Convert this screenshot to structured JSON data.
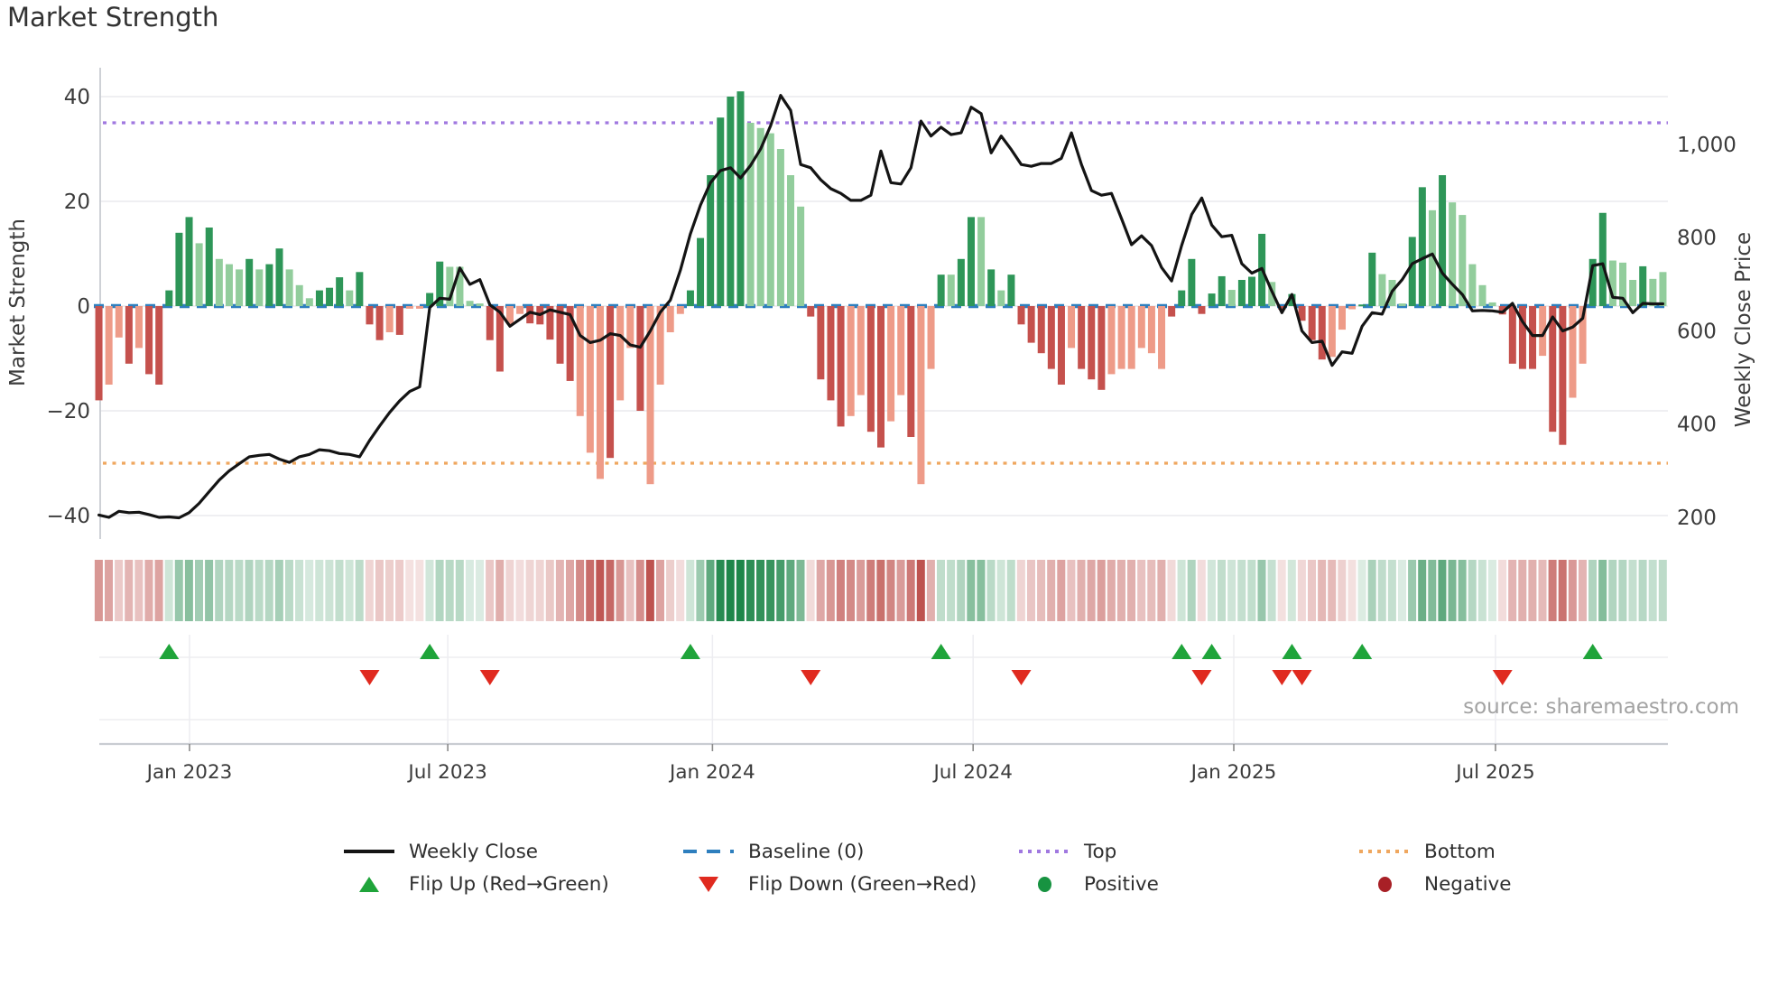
{
  "chart_data": {
    "type": "bar+line",
    "title": "Market Strength",
    "ylabel_left": "Market Strength",
    "ylabel_right": "Weekly Close Price",
    "source": "source: sharemaestro.com",
    "y_left_ticks": [
      {
        "label": "40",
        "value": 40
      },
      {
        "label": "20",
        "value": 20
      },
      {
        "label": "0",
        "value": 0
      },
      {
        "label": "−20",
        "value": -20
      },
      {
        "label": "−40",
        "value": -40
      }
    ],
    "y_right_ticks": [
      {
        "label": "1,000",
        "value": 1000
      },
      {
        "label": "800",
        "value": 800
      },
      {
        "label": "600",
        "value": 600
      },
      {
        "label": "400",
        "value": 400
      },
      {
        "label": "200",
        "value": 200
      }
    ],
    "y_left_range": [
      -44,
      45.5
    ],
    "y_right_range": [
      155,
      1165
    ],
    "x_ticks": [
      {
        "label": "Jan 2023",
        "week": 9.54
      },
      {
        "label": "Jul 2023",
        "week": 35.3
      },
      {
        "label": "Jan 2024",
        "week": 61.7
      },
      {
        "label": "Jul 2024",
        "week": 87.7
      },
      {
        "label": "Jan 2025",
        "week": 113.7
      },
      {
        "label": "Jul 2025",
        "week": 139.8
      }
    ],
    "baseline_value": 0,
    "top_line_value": 35,
    "bottom_line_value": -30,
    "grid": true,
    "legend_position": "bottom",
    "strength": [
      -18,
      -15,
      -6,
      -11,
      -8,
      -13,
      -15,
      3,
      14,
      17,
      12,
      15,
      9,
      8,
      7,
      9,
      7,
      8,
      11,
      7,
      4,
      1.5,
      3,
      3.5,
      5.5,
      3,
      6.5,
      -3.5,
      -6.5,
      -5,
      -5.5,
      -0.5,
      -0.5,
      2.5,
      8.5,
      7.5,
      7.5,
      1,
      0.5,
      -6.5,
      -12.5,
      -3.5,
      -1.5,
      -3.3,
      -3.5,
      -6.4,
      -11,
      -14.3,
      -21,
      -28,
      -33,
      -29,
      -18,
      -8,
      -20,
      -34,
      -15,
      -5,
      -1.5,
      3,
      13,
      25,
      36,
      40,
      41,
      35,
      34,
      33,
      30,
      25,
      19,
      -2,
      -14,
      -18,
      -23,
      -21,
      -17,
      -24,
      -27,
      -22,
      -17,
      -25,
      -34,
      -12,
      6,
      6,
      9,
      17,
      17,
      7,
      3,
      6,
      -3.5,
      -7,
      -9,
      -12,
      -15,
      -8,
      -12,
      -14,
      -16,
      -13,
      -12,
      -12,
      -8,
      -9,
      -12,
      -2,
      3,
      9,
      -1.5,
      2.4,
      5.7,
      3.1,
      5,
      5.6,
      13.8,
      4.6,
      -0.7,
      2.3,
      -2.8,
      -6.5,
      -10.2,
      -9.7,
      -4.5,
      -0.6,
      0.3,
      10.2,
      6.1,
      5,
      0.5,
      13.2,
      22.7,
      18.3,
      25,
      19.8,
      17.4,
      8,
      4,
      0.7,
      -1.6,
      -11,
      -12,
      -12,
      -9.5,
      -24,
      -26.5,
      -17.5,
      -11,
      9,
      17.8,
      8.7,
      8.3,
      5,
      7.6,
      5.2,
      6.5
    ],
    "light_shade": [
      0,
      1,
      1,
      0,
      1,
      0,
      0,
      0,
      0,
      0,
      1,
      0,
      1,
      1,
      1,
      0,
      1,
      0,
      0,
      1,
      1,
      1,
      0,
      0,
      0,
      1,
      0,
      0,
      0,
      1,
      0,
      1,
      1,
      0,
      0,
      1,
      1,
      1,
      1,
      0,
      0,
      1,
      1,
      0,
      0,
      0,
      0,
      0,
      1,
      1,
      1,
      0,
      1,
      1,
      0,
      1,
      1,
      1,
      1,
      0,
      0,
      0,
      0,
      0,
      0,
      1,
      1,
      1,
      1,
      1,
      1,
      0,
      0,
      0,
      0,
      1,
      1,
      0,
      0,
      1,
      1,
      0,
      1,
      1,
      0,
      1,
      0,
      0,
      1,
      0,
      1,
      0,
      0,
      0,
      0,
      0,
      0,
      1,
      0,
      0,
      0,
      1,
      1,
      1,
      1,
      1,
      1,
      0,
      0,
      0,
      0,
      0,
      0,
      1,
      0,
      0,
      0,
      1,
      0,
      0,
      0,
      0,
      0,
      1,
      1,
      1,
      0,
      0,
      1,
      1,
      1,
      0,
      0,
      1,
      0,
      1,
      1,
      1,
      1,
      1,
      0,
      0,
      0,
      0,
      1,
      0,
      0,
      1,
      1,
      0,
      0,
      1,
      1,
      1,
      0,
      1,
      1
    ],
    "weekly_close": [
      205,
      200,
      213,
      210,
      211,
      206,
      200,
      201,
      199,
      210,
      230,
      255,
      280,
      300,
      315,
      330,
      333,
      335,
      325,
      318,
      330,
      335,
      345,
      343,
      337,
      335,
      330,
      365,
      396,
      425,
      450,
      470,
      480,
      650,
      670,
      668,
      735,
      700,
      710,
      656,
      640,
      610,
      625,
      640,
      635,
      645,
      640,
      635,
      590,
      575,
      580,
      594,
      590,
      570,
      565,
      600,
      640,
      666,
      730,
      808,
      870,
      918,
      944,
      950,
      928,
      955,
      990,
      1040,
      1105,
      1073,
      957,
      950,
      924,
      905,
      895,
      880,
      880,
      891,
      986,
      918,
      915,
      950,
      1050,
      1018,
      1037,
      1021,
      1025,
      1080,
      1066,
      982,
      1018,
      989,
      957,
      953,
      959,
      959,
      970,
      1025,
      957,
      901,
      891,
      895,
      841,
      785,
      804,
      783,
      736,
      707,
      783,
      850,
      885,
      827,
      802,
      805,
      744,
      724,
      734,
      685,
      639,
      678,
      600,
      575,
      578,
      526,
      555,
      552,
      610,
      639,
      636,
      685,
      710,
      744,
      755,
      765,
      724,
      700,
      678,
      643,
      644,
      643,
      640,
      659,
      620,
      590,
      590,
      630,
      600,
      608,
      627,
      740,
      744,
      672,
      670,
      639,
      659,
      658,
      658
    ],
    "flip_up_weeks": [
      7,
      33,
      59,
      84,
      108,
      111,
      119,
      126,
      149
    ],
    "flip_down_weeks": [
      27,
      39,
      71,
      92,
      110,
      118,
      120,
      140
    ],
    "colors": {
      "bar_green_dark": "#2e9658",
      "bar_green_light": "#92cd9c",
      "bar_red_dark": "#c5514d",
      "bar_red_light": "#ee9b88",
      "line": "#141414",
      "baseline": "#2e7fbe",
      "top_line": "#a078e0",
      "bottom_line": "#efa75f",
      "flip_up": "#1fa43a",
      "flip_down": "#e02a1f",
      "heat_green_full": "#1e8649",
      "heat_red_full": "#b8423e",
      "grid": "#ededf1",
      "spine": "#c9ccd2",
      "tick_text": "#3b3b3b"
    }
  },
  "legend": {
    "weekly_close": "Weekly Close",
    "baseline": "Baseline (0)",
    "top": "Top",
    "bottom": "Bottom",
    "flip_up": "Flip Up (Red→Green)",
    "flip_down": "Flip Down (Green→Red)",
    "positive": "Positive",
    "negative": "Negative"
  }
}
